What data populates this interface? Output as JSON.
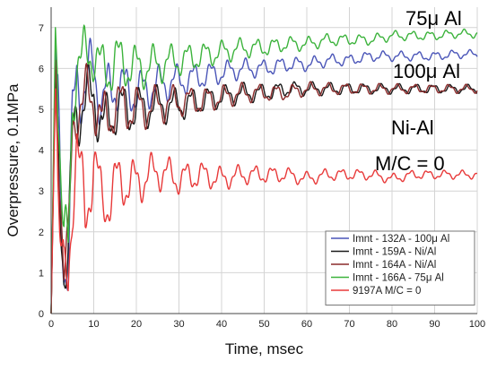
{
  "chart_data": {
    "type": "line",
    "xlabel": "Time, msec",
    "ylabel": "Overpressure, 0.1MPa",
    "xlim": [
      0,
      100
    ],
    "ylim": [
      0,
      7.5
    ],
    "xticks": [
      0,
      10,
      20,
      30,
      40,
      50,
      60,
      70,
      80,
      90,
      100
    ],
    "yticks": [
      0,
      1,
      2,
      3,
      4,
      5,
      6,
      7
    ],
    "grid": true,
    "legend_position": "bottom-right",
    "annotations": [
      {
        "text": "75μ Al",
        "near_series": "Imnt - 166A - 75μ Al"
      },
      {
        "text": "100μ Al",
        "near_series": "Imnt - 132A - 100μ Al"
      },
      {
        "text": "Ni-Al",
        "near_series": "Imnt - 159A - Ni/Al"
      },
      {
        "text": "M/C = 0",
        "near_series": "9197A M/C = 0"
      }
    ],
    "series": [
      {
        "name": "Imnt - 132A - 100μ Al",
        "color": "#4a55b8",
        "x": [
          0,
          1,
          2,
          3,
          4,
          5,
          6,
          8,
          10,
          12,
          15,
          20,
          25,
          30,
          35,
          40,
          45,
          50,
          55,
          60,
          65,
          70,
          75,
          80,
          85,
          90,
          95,
          100
        ],
        "y": [
          0,
          6.5,
          4.0,
          1.5,
          1.0,
          4.5,
          5.8,
          5.5,
          6.0,
          5.2,
          5.6,
          5.4,
          5.6,
          5.7,
          5.8,
          5.9,
          6.0,
          6.0,
          6.1,
          6.1,
          6.2,
          6.2,
          6.3,
          6.3,
          6.3,
          6.3,
          6.35,
          6.35
        ]
      },
      {
        "name": "Imnt - 159A - Ni/Al",
        "color": "#1a1a1a",
        "x": [
          0,
          1,
          2,
          3,
          4,
          5,
          6,
          8,
          10,
          12,
          15,
          20,
          25,
          30,
          35,
          40,
          45,
          50,
          55,
          60,
          65,
          70,
          75,
          80,
          85,
          90,
          95,
          100
        ],
        "y": [
          0,
          6.0,
          3.5,
          1.2,
          1.0,
          4.2,
          5.2,
          5.0,
          5.5,
          4.5,
          5.0,
          5.0,
          5.1,
          5.1,
          5.2,
          5.3,
          5.4,
          5.4,
          5.5,
          5.5,
          5.5,
          5.5,
          5.5,
          5.5,
          5.5,
          5.5,
          5.5,
          5.5
        ]
      },
      {
        "name": "Imnt - 164A - Ni/Al",
        "color": "#8a2a2a",
        "x": [
          0,
          1,
          2,
          3,
          4,
          5,
          6,
          8,
          10,
          12,
          15,
          20,
          25,
          30,
          35,
          40,
          45,
          50,
          55,
          60,
          65,
          70,
          75,
          80,
          85,
          90,
          95,
          100
        ],
        "y": [
          0,
          6.2,
          3.8,
          1.3,
          1.1,
          4.3,
          5.3,
          5.1,
          5.4,
          4.6,
          5.1,
          5.0,
          5.1,
          5.2,
          5.2,
          5.3,
          5.4,
          5.4,
          5.4,
          5.5,
          5.5,
          5.5,
          5.5,
          5.5,
          5.5,
          5.5,
          5.5,
          5.5
        ]
      },
      {
        "name": "Imnt - 166A - 75μ Al",
        "color": "#3cb33c",
        "x": [
          0,
          1,
          2,
          3,
          4,
          5,
          6,
          8,
          10,
          12,
          15,
          20,
          25,
          30,
          35,
          40,
          45,
          50,
          55,
          60,
          65,
          70,
          75,
          80,
          85,
          90,
          95,
          100
        ],
        "y": [
          0,
          7.0,
          4.5,
          1.8,
          1.2,
          5.0,
          6.5,
          6.0,
          6.6,
          5.8,
          6.2,
          6.0,
          6.1,
          6.2,
          6.3,
          6.4,
          6.5,
          6.5,
          6.6,
          6.6,
          6.7,
          6.7,
          6.7,
          6.8,
          6.8,
          6.8,
          6.85,
          6.85
        ]
      },
      {
        "name": "9197A M/C = 0",
        "color": "#e83a3a",
        "x": [
          0,
          1,
          2,
          3,
          4,
          5,
          6,
          8,
          10,
          12,
          15,
          20,
          25,
          30,
          35,
          40,
          45,
          50,
          55,
          60,
          65,
          70,
          75,
          80,
          85,
          90,
          95,
          100
        ],
        "y": [
          0,
          5.5,
          2.5,
          0.5,
          0.3,
          3.0,
          4.5,
          2.0,
          4.0,
          2.5,
          3.2,
          3.2,
          3.5,
          3.3,
          3.4,
          3.3,
          3.4,
          3.4,
          3.4,
          3.3,
          3.4,
          3.4,
          3.4,
          3.3,
          3.4,
          3.4,
          3.4,
          3.4
        ]
      }
    ]
  }
}
